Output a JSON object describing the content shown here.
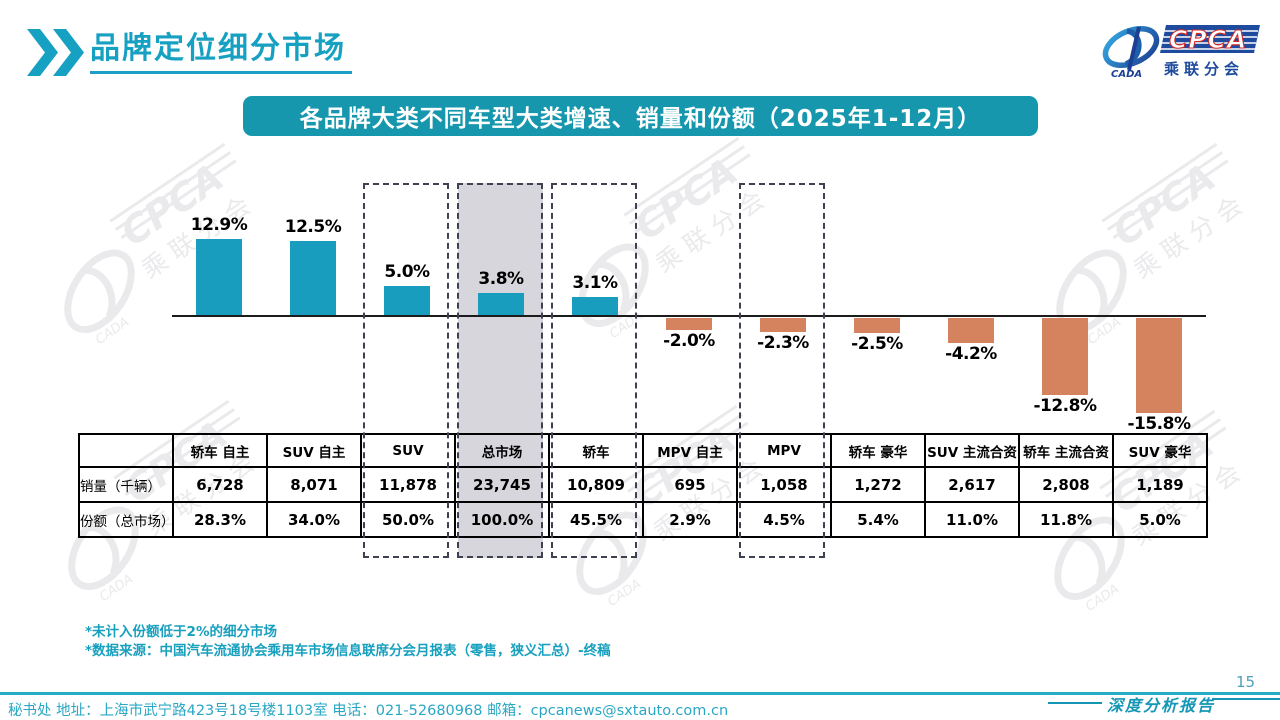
{
  "header": {
    "title": "品牌定位细分市场"
  },
  "logo": {
    "brand": "CPCA",
    "sub_cn": "乘联分会",
    "org": "CADA"
  },
  "banner": {
    "title": "各品牌大类不同车型大类增速、销量和份额（2025年1-12月）"
  },
  "watermark": {
    "brand": "CPCA",
    "sub_cn": "乘联分会",
    "org": "CADA"
  },
  "chart_data": {
    "type": "bar",
    "title": "各品牌大类不同车型大类增速、销量和份额（2025年1-12月）",
    "categories": [
      "轿车 自主",
      "SUV 自主",
      "SUV",
      "总市场",
      "轿车",
      "MPV 自主",
      "MPV",
      "轿车 豪华",
      "SUV 主流合资",
      "轿车 主流合资",
      "SUV 豪华"
    ],
    "series": [
      {
        "name": "增速",
        "unit": "%",
        "values": [
          12.9,
          12.5,
          5.0,
          3.8,
          3.1,
          -2.0,
          -2.3,
          -2.5,
          -4.2,
          -12.8,
          -15.8
        ]
      }
    ],
    "value_labels": [
      "12.9%",
      "12.5%",
      "5.0%",
      "3.8%",
      "3.1%",
      "-2.0%",
      "-2.3%",
      "-2.5%",
      "-4.2%",
      "-12.8%",
      "-15.8%"
    ],
    "ylim": [
      -18,
      14
    ],
    "grid": false,
    "legend": "none",
    "value_label_position": "outside-end",
    "bar_color_positive": "#189DBE",
    "bar_color_negative": "#D5835F",
    "highlighted_dashed_categories": [
      "SUV",
      "总市场",
      "轿车",
      "MPV"
    ],
    "highlighted_gray_category": "总市场",
    "table": {
      "row_headers": [
        "销量（千辆）",
        "份额（总市场）"
      ],
      "sales_thousand_units": [
        "6,728",
        "8,071",
        "11,878",
        "23,745",
        "10,809",
        "695",
        "1,058",
        "1,272",
        "2,617",
        "2,808",
        "1,189"
      ],
      "share_of_total_market": [
        "28.3%",
        "34.0%",
        "50.0%",
        "100.0%",
        "45.5%",
        "2.9%",
        "4.5%",
        "5.4%",
        "11.0%",
        "11.8%",
        "5.0%"
      ]
    }
  },
  "notes": {
    "line1": "*未计入份额低于2%的细分市场",
    "line2": "*数据来源：中国汽车流通协会乘用车市场信息联席分会月报表（零售，狭义汇总）-终稿"
  },
  "footer": {
    "contact": "秘书处  地址：上海市武宁路423号18号楼1103室 电话：021-52680968   邮箱：cpcanews@sxtauto.com.cn",
    "page_number": "15",
    "report_type": "深度分析报告"
  },
  "colors": {
    "teal": "#189DBE",
    "orange": "#D5835F",
    "banner_bg": "#1797AD",
    "note_text": "#17A0BE",
    "gray_highlight": "#D6D6DC",
    "dashed_border": "#3E4250"
  }
}
